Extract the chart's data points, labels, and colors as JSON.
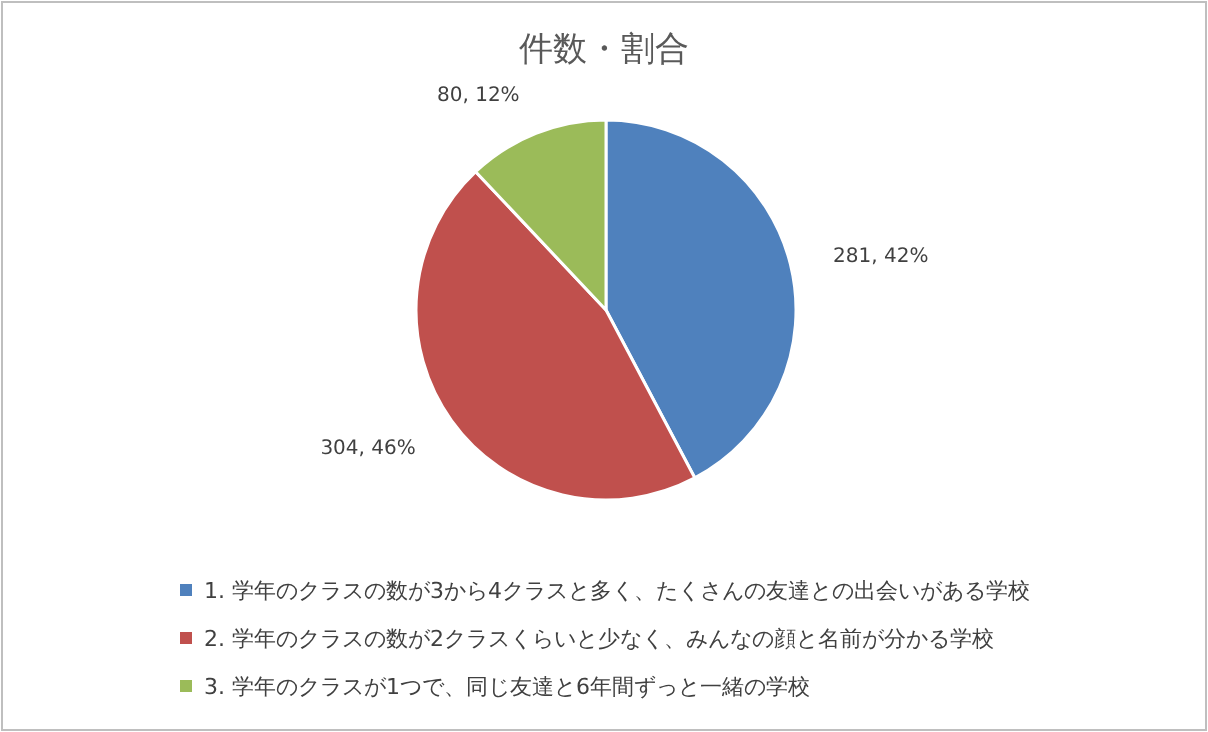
{
  "chart_data": {
    "type": "pie",
    "title": "件数・割合",
    "categories": [
      "1. 学年のクラスの数が3から4クラスと多く、たくさんの友達との出会いがある学校",
      "2. 学年のクラスの数が2クラスくらいと少なく、みんなの顔と名前が分かる学校",
      "3. 学年のクラスが1つで、同じ友達と6年間ずっと一緒の学校"
    ],
    "values": [
      281,
      304,
      80
    ],
    "colors": [
      "#4f81bd",
      "#c0504d",
      "#9bbb59"
    ],
    "value_labels": [
      "281, 42%",
      "304, 46%",
      "80, 12%"
    ],
    "legend": "bottom"
  }
}
